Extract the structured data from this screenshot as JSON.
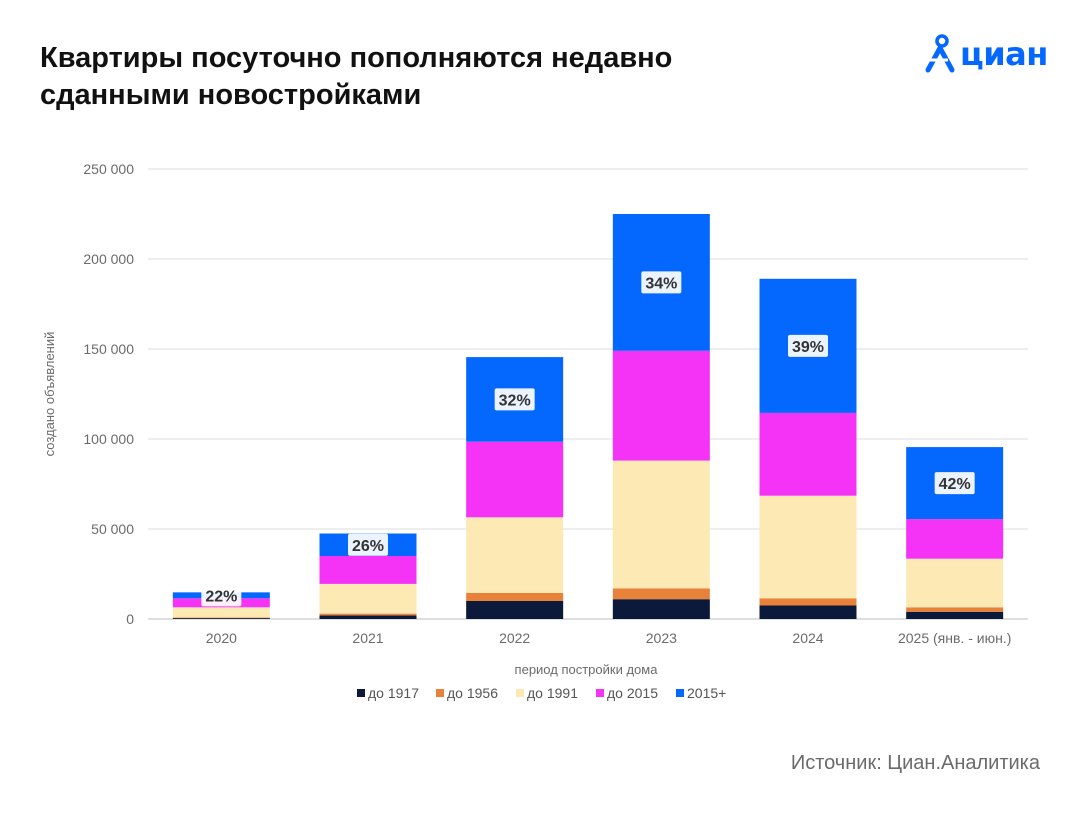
{
  "header": {
    "title": "Квартиры посуточно пополняются недавно сданными новостройками",
    "logo_text": "циан"
  },
  "footer": {
    "source": "Источник: Циан.Аналитика"
  },
  "colors": {
    "до 1917": "#0b1a3a",
    "до 1956": "#e8823a",
    "до 1991": "#fde9b4",
    "до 2015": "#f433f6",
    "2015+": "#0468ff",
    "brand": "#0468ff"
  },
  "chart_data": {
    "type": "bar",
    "stacked": true,
    "title": "Квартиры посуточно пополняются недавно сданными новостройками",
    "xlabel": "период постройки дома",
    "ylabel": "создано объявлений",
    "ylim": [
      0,
      250000
    ],
    "yticks": [
      0,
      50000,
      100000,
      150000,
      200000,
      250000
    ],
    "ytick_labels": [
      "0",
      "50 000",
      "100 000",
      "150 000",
      "200 000",
      "250 000"
    ],
    "grid": true,
    "legend_position": "bottom",
    "categories": [
      "2020",
      "2021",
      "2022",
      "2023",
      "2024",
      "2025 (янв. - июн.)"
    ],
    "series": [
      {
        "name": "до 1917",
        "values": [
          500,
          2000,
          10000,
          11000,
          7500,
          4000
        ]
      },
      {
        "name": "до 1956",
        "values": [
          300,
          1000,
          4500,
          6000,
          4000,
          2500
        ]
      },
      {
        "name": "до 1991",
        "values": [
          5700,
          16500,
          42000,
          71000,
          57000,
          27000
        ]
      },
      {
        "name": "до 2015",
        "values": [
          5000,
          15500,
          42000,
          61000,
          46000,
          22000
        ]
      },
      {
        "name": "2015+",
        "values": [
          3300,
          12500,
          47000,
          76000,
          74500,
          40000
        ]
      }
    ],
    "annotations": [
      "22%",
      "26%",
      "32%",
      "34%",
      "39%",
      "42%"
    ]
  }
}
